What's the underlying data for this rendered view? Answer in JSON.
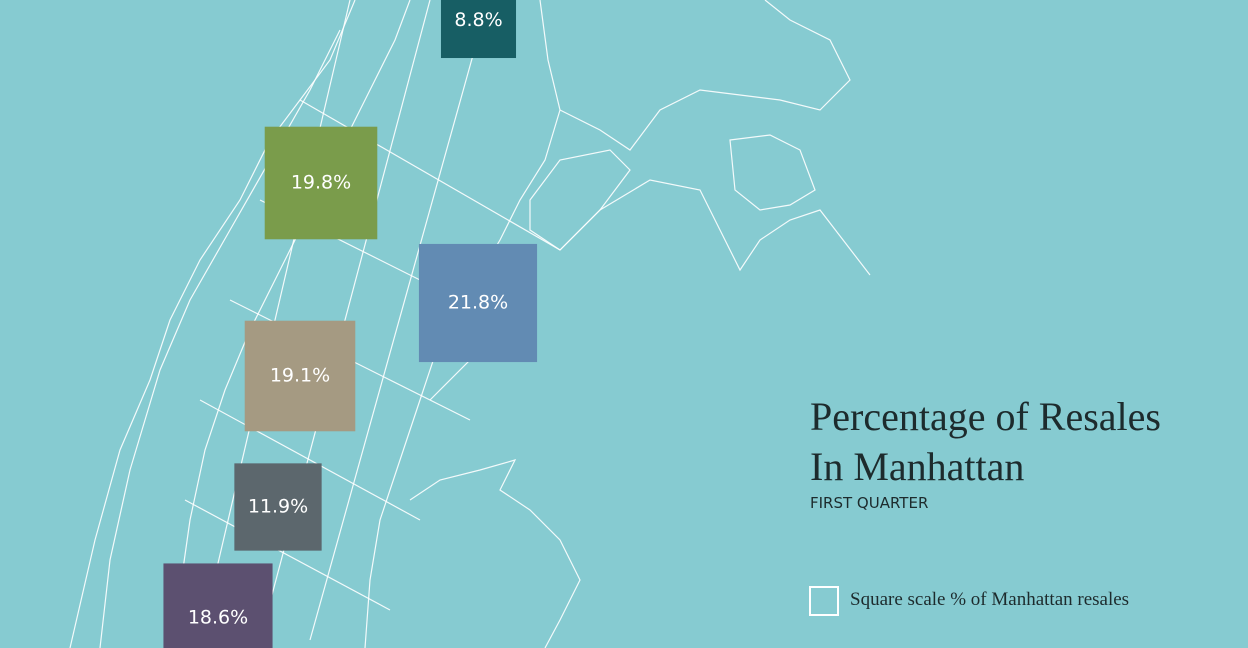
{
  "chart_data": {
    "type": "square-area",
    "title_lines": [
      "Percentage of Resales",
      "In Manhattan"
    ],
    "subtitle": "FIRST QUARTER",
    "legend": "Square scale % of Manhattan resales",
    "values": [
      8.8,
      19.8,
      21.8,
      19.1,
      11.9,
      18.6
    ],
    "value_labels": [
      "8.8%",
      "19.8%",
      "21.8%",
      "19.1%",
      "11.9%",
      "18.6%"
    ],
    "colors": [
      "#175e64",
      "#7a9c4b",
      "#628bb3",
      "#a59a82",
      "#5c676d",
      "#5c5070"
    ]
  }
}
